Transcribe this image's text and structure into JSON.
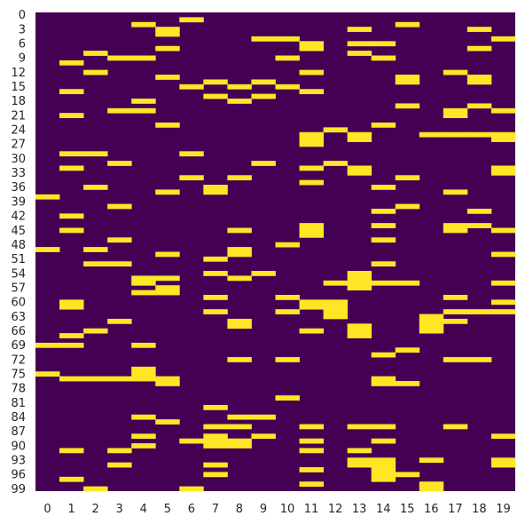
{
  "chart_data": {
    "type": "heatmap",
    "title": "",
    "xlabel": "",
    "ylabel": "",
    "x_tick_labels": [
      "0",
      "1",
      "2",
      "3",
      "4",
      "5",
      "6",
      "7",
      "8",
      "9",
      "10",
      "11",
      "12",
      "13",
      "14",
      "15",
      "16",
      "17",
      "18",
      "19"
    ],
    "y_tick_labels": [
      "0",
      "3",
      "6",
      "9",
      "12",
      "15",
      "18",
      "21",
      "24",
      "27",
      "30",
      "33",
      "36",
      "39",
      "42",
      "45",
      "48",
      "51",
      "54",
      "57",
      "60",
      "63",
      "66",
      "69",
      "72",
      "75",
      "78",
      "81",
      "84",
      "87",
      "90",
      "93",
      "96",
      "99"
    ],
    "n_rows": 100,
    "n_cols": 20,
    "value_range": [
      0,
      1
    ],
    "colors": {
      "low": "#440154",
      "high": "#fde725"
    },
    "colorbar": false,
    "ones": [
      [
        1,
        6
      ],
      [
        2,
        4
      ],
      [
        2,
        15
      ],
      [
        3,
        5
      ],
      [
        3,
        13
      ],
      [
        3,
        18
      ],
      [
        4,
        5
      ],
      [
        5,
        9
      ],
      [
        5,
        10
      ],
      [
        5,
        19
      ],
      [
        6,
        11
      ],
      [
        6,
        13
      ],
      [
        6,
        14
      ],
      [
        7,
        5
      ],
      [
        7,
        11
      ],
      [
        7,
        18
      ],
      [
        8,
        2
      ],
      [
        8,
        13
      ],
      [
        9,
        3
      ],
      [
        9,
        4
      ],
      [
        9,
        10
      ],
      [
        9,
        14
      ],
      [
        10,
        1
      ],
      [
        12,
        2
      ],
      [
        12,
        11
      ],
      [
        12,
        17
      ],
      [
        13,
        5
      ],
      [
        13,
        15
      ],
      [
        13,
        18
      ],
      [
        14,
        7
      ],
      [
        14,
        9
      ],
      [
        14,
        15
      ],
      [
        14,
        18
      ],
      [
        15,
        6
      ],
      [
        15,
        8
      ],
      [
        15,
        10
      ],
      [
        16,
        1
      ],
      [
        16,
        11
      ],
      [
        17,
        7
      ],
      [
        17,
        9
      ],
      [
        18,
        4
      ],
      [
        18,
        8
      ],
      [
        19,
        15
      ],
      [
        19,
        18
      ],
      [
        20,
        3
      ],
      [
        20,
        4
      ],
      [
        20,
        17
      ],
      [
        20,
        19
      ],
      [
        21,
        1
      ],
      [
        21,
        17
      ],
      [
        23,
        5
      ],
      [
        23,
        14
      ],
      [
        24,
        12
      ],
      [
        25,
        11
      ],
      [
        25,
        13
      ],
      [
        25,
        16
      ],
      [
        25,
        17
      ],
      [
        25,
        18
      ],
      [
        25,
        19
      ],
      [
        26,
        11
      ],
      [
        26,
        13
      ],
      [
        26,
        19
      ],
      [
        27,
        11
      ],
      [
        29,
        1
      ],
      [
        29,
        2
      ],
      [
        29,
        6
      ],
      [
        31,
        3
      ],
      [
        31,
        9
      ],
      [
        31,
        12
      ],
      [
        32,
        1
      ],
      [
        32,
        11
      ],
      [
        32,
        13
      ],
      [
        32,
        19
      ],
      [
        33,
        13
      ],
      [
        33,
        19
      ],
      [
        34,
        6
      ],
      [
        34,
        8
      ],
      [
        34,
        15
      ],
      [
        35,
        11
      ],
      [
        36,
        2
      ],
      [
        36,
        7
      ],
      [
        36,
        14
      ],
      [
        37,
        5
      ],
      [
        37,
        7
      ],
      [
        37,
        17
      ],
      [
        38,
        0
      ],
      [
        40,
        3
      ],
      [
        40,
        15
      ],
      [
        41,
        14
      ],
      [
        41,
        18
      ],
      [
        42,
        1
      ],
      [
        44,
        11
      ],
      [
        44,
        14
      ],
      [
        44,
        17
      ],
      [
        44,
        18
      ],
      [
        45,
        1
      ],
      [
        45,
        8
      ],
      [
        45,
        11
      ],
      [
        45,
        17
      ],
      [
        45,
        19
      ],
      [
        46,
        11
      ],
      [
        47,
        3
      ],
      [
        47,
        14
      ],
      [
        48,
        10
      ],
      [
        49,
        0
      ],
      [
        49,
        2
      ],
      [
        49,
        8
      ],
      [
        50,
        5
      ],
      [
        50,
        8
      ],
      [
        50,
        19
      ],
      [
        51,
        7
      ],
      [
        52,
        2
      ],
      [
        52,
        3
      ],
      [
        52,
        14
      ],
      [
        54,
        7
      ],
      [
        54,
        9
      ],
      [
        54,
        13
      ],
      [
        55,
        4
      ],
      [
        55,
        5
      ],
      [
        55,
        8
      ],
      [
        55,
        13
      ],
      [
        56,
        4
      ],
      [
        56,
        12
      ],
      [
        56,
        13
      ],
      [
        56,
        14
      ],
      [
        56,
        15
      ],
      [
        56,
        19
      ],
      [
        57,
        5
      ],
      [
        57,
        13
      ],
      [
        58,
        4
      ],
      [
        58,
        5
      ],
      [
        59,
        7
      ],
      [
        59,
        10
      ],
      [
        59,
        17
      ],
      [
        60,
        1
      ],
      [
        60,
        11
      ],
      [
        60,
        12
      ],
      [
        60,
        19
      ],
      [
        61,
        1
      ],
      [
        61,
        11
      ],
      [
        61,
        12
      ],
      [
        62,
        7
      ],
      [
        62,
        10
      ],
      [
        62,
        12
      ],
      [
        62,
        17
      ],
      [
        62,
        18
      ],
      [
        62,
        19
      ],
      [
        63,
        12
      ],
      [
        63,
        16
      ],
      [
        64,
        3
      ],
      [
        64,
        8
      ],
      [
        64,
        16
      ],
      [
        64,
        17
      ],
      [
        65,
        8
      ],
      [
        65,
        13
      ],
      [
        65,
        16
      ],
      [
        66,
        2
      ],
      [
        66,
        11
      ],
      [
        66,
        13
      ],
      [
        66,
        16
      ],
      [
        67,
        1
      ],
      [
        67,
        13
      ],
      [
        69,
        0
      ],
      [
        69,
        1
      ],
      [
        69,
        4
      ],
      [
        70,
        15
      ],
      [
        71,
        14
      ],
      [
        72,
        8
      ],
      [
        72,
        10
      ],
      [
        72,
        17
      ],
      [
        72,
        18
      ],
      [
        74,
        4
      ],
      [
        75,
        0
      ],
      [
        75,
        4
      ],
      [
        76,
        1
      ],
      [
        76,
        2
      ],
      [
        76,
        3
      ],
      [
        76,
        4
      ],
      [
        76,
        5
      ],
      [
        76,
        14
      ],
      [
        77,
        5
      ],
      [
        77,
        14
      ],
      [
        77,
        15
      ],
      [
        80,
        10
      ],
      [
        82,
        7
      ],
      [
        84,
        4
      ],
      [
        84,
        8
      ],
      [
        84,
        9
      ],
      [
        85,
        5
      ],
      [
        86,
        7
      ],
      [
        86,
        8
      ],
      [
        86,
        11
      ],
      [
        86,
        13
      ],
      [
        86,
        14
      ],
      [
        86,
        17
      ],
      [
        88,
        4
      ],
      [
        88,
        7
      ],
      [
        88,
        9
      ],
      [
        88,
        19
      ],
      [
        89,
        6
      ],
      [
        89,
        7
      ],
      [
        89,
        8
      ],
      [
        89,
        11
      ],
      [
        89,
        14
      ],
      [
        90,
        4
      ],
      [
        90,
        7
      ],
      [
        90,
        8
      ],
      [
        91,
        1
      ],
      [
        91,
        3
      ],
      [
        91,
        11
      ],
      [
        91,
        13
      ],
      [
        93,
        13
      ],
      [
        93,
        14
      ],
      [
        93,
        16
      ],
      [
        93,
        19
      ],
      [
        94,
        3
      ],
      [
        94,
        7
      ],
      [
        94,
        13
      ],
      [
        94,
        14
      ],
      [
        94,
        19
      ],
      [
        95,
        11
      ],
      [
        95,
        14
      ],
      [
        96,
        7
      ],
      [
        96,
        14
      ],
      [
        96,
        15
      ],
      [
        97,
        1
      ],
      [
        97,
        14
      ],
      [
        98,
        11
      ],
      [
        98,
        16
      ],
      [
        99,
        2
      ],
      [
        99,
        6
      ],
      [
        99,
        16
      ]
    ]
  }
}
